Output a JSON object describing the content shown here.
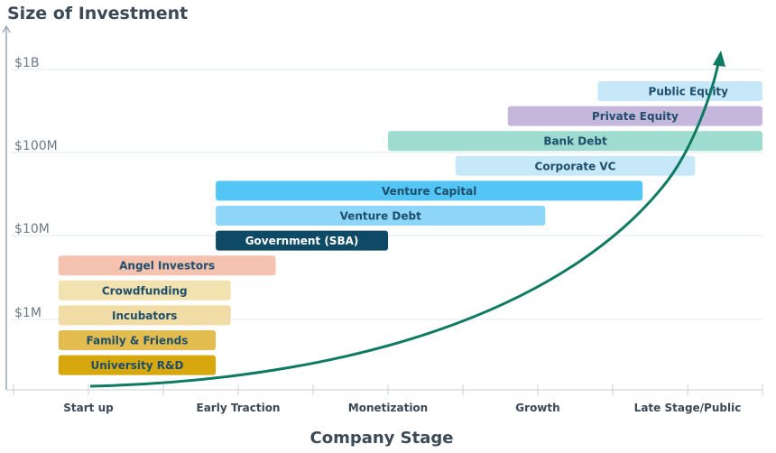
{
  "chart_data": {
    "type": "bar",
    "orientation": "horizontal-range",
    "title": "Size of Investment",
    "ylabel": "Size of Investment",
    "xlabel": "Company Stage",
    "y_ticks": [
      "$1B",
      "$100M",
      "$10M",
      "$1M"
    ],
    "x_ticks": [
      "Start up",
      "Early Traction",
      "Monetization",
      "Growth",
      "Late Stage/Public"
    ],
    "grid": true,
    "series": [
      {
        "name": "Public Equity",
        "start_stage": 3.9,
        "end_stage": 5.0,
        "color": "#c6e8f8",
        "text_color": "#1f4e6b"
      },
      {
        "name": "Private Equity",
        "start_stage": 3.3,
        "end_stage": 5.0,
        "color": "#c5b6dc",
        "text_color": "#1f4e6b"
      },
      {
        "name": "Bank Debt",
        "start_stage": 2.5,
        "end_stage": 5.0,
        "color": "#9ddccf",
        "text_color": "#1f4e6b"
      },
      {
        "name": "Corporate VC",
        "start_stage": 2.95,
        "end_stage": 4.55,
        "color": "#c6e8f8",
        "text_color": "#1f4e6b"
      },
      {
        "name": "Venture Capital",
        "start_stage": 1.35,
        "end_stage": 4.2,
        "color": "#53c6f5",
        "text_color": "#1f4e6b"
      },
      {
        "name": "Venture Debt",
        "start_stage": 1.35,
        "end_stage": 3.55,
        "color": "#8ed6f8",
        "text_color": "#1f4e6b"
      },
      {
        "name": "Government (SBA)",
        "start_stage": 1.35,
        "end_stage": 2.5,
        "color": "#0e4a66",
        "text_color": "#ffffff"
      },
      {
        "name": "Angel Investors",
        "start_stage": 0.3,
        "end_stage": 1.75,
        "color": "#f5c2b0",
        "text_color": "#1f4e6b"
      },
      {
        "name": "Crowdfunding",
        "start_stage": 0.3,
        "end_stage": 1.45,
        "color": "#f2e2b0",
        "text_color": "#1f4e6b"
      },
      {
        "name": "Incubators",
        "start_stage": 0.3,
        "end_stage": 1.45,
        "color": "#f0dca4",
        "text_color": "#1f4e6b"
      },
      {
        "name": "Family & Friends",
        "start_stage": 0.3,
        "end_stage": 1.35,
        "color": "#e2bc4e",
        "text_color": "#1f4e6b"
      },
      {
        "name": "University R&D",
        "start_stage": 0.3,
        "end_stage": 1.35,
        "color": "#d6a80e",
        "text_color": "#1f4e6b"
      }
    ],
    "curve_color": "#0e7a62"
  }
}
